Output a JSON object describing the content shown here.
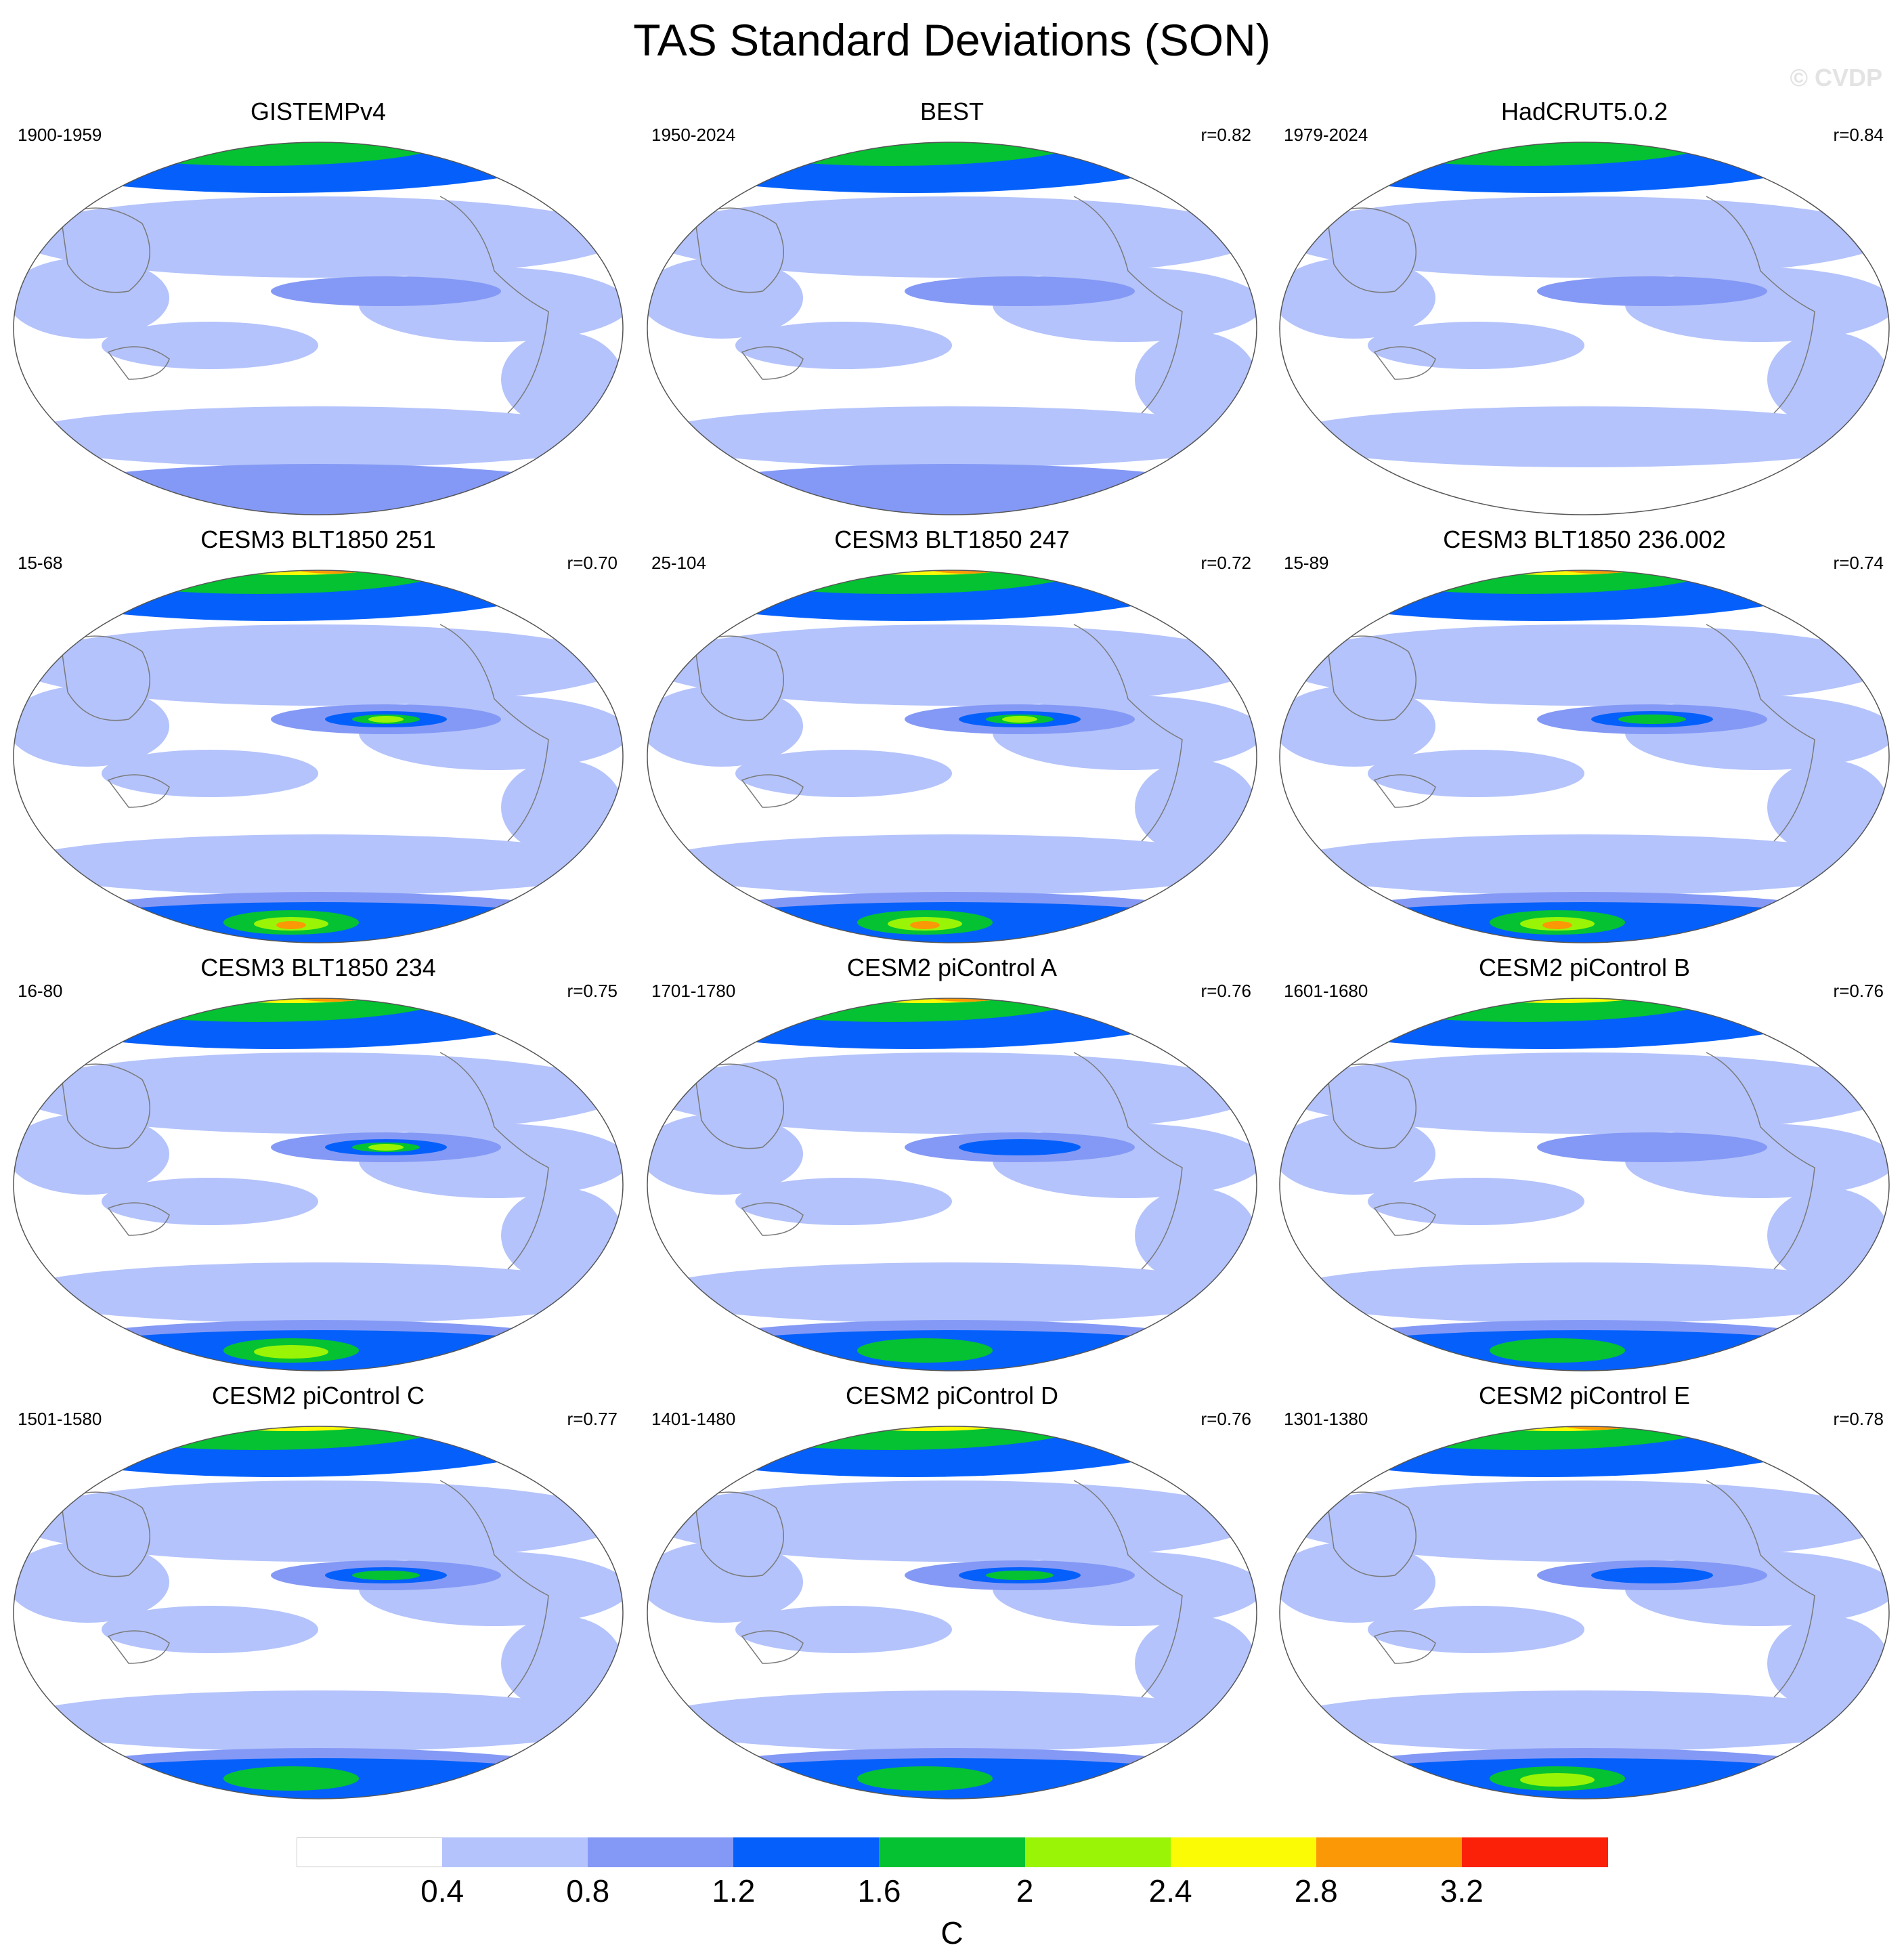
{
  "title": "TAS Standard Deviations (SON)",
  "watermark": "© CVDP",
  "colorbar": {
    "unit": "C",
    "levels": [
      "0.4",
      "0.8",
      "1.2",
      "1.6",
      "2",
      "2.4",
      "2.8",
      "3.2"
    ],
    "colors": [
      "#ffffff",
      "#b4c3fb",
      "#8499f5",
      "#0560fb",
      "#05c232",
      "#99f505",
      "#fbfb05",
      "#fb9805",
      "#fb2108"
    ]
  },
  "panels": [
    {
      "title": "GISTEMPv4",
      "period": "1900-1959",
      "r": "",
      "arctic": 4,
      "antarctic": 1,
      "enso": 2,
      "antarcticBlue": true
    },
    {
      "title": "BEST",
      "period": "1950-2024",
      "r": "r=0.82",
      "arctic": 5,
      "antarctic": 1,
      "enso": 2,
      "antarcticBlue": true
    },
    {
      "title": "HadCRUT5.0.2",
      "period": "1979-2024",
      "r": "r=0.84",
      "arctic": 4,
      "antarctic": 1,
      "enso": 2,
      "antarcticBlue": false
    },
    {
      "title": "CESM3 BLT1850 251",
      "period": "15-68",
      "r": "r=0.70",
      "arctic": 8,
      "antarctic": 8,
      "enso": 5,
      "antarcticBlue": true
    },
    {
      "title": "CESM3 BLT1850 247",
      "period": "25-104",
      "r": "r=0.72",
      "arctic": 7,
      "antarctic": 8,
      "enso": 5,
      "antarcticBlue": true
    },
    {
      "title": "CESM3 BLT1850 236.002",
      "period": "15-89",
      "r": "r=0.74",
      "arctic": 7,
      "antarctic": 8,
      "enso": 4,
      "antarcticBlue": true
    },
    {
      "title": "CESM3 BLT1850 234",
      "period": "16-80",
      "r": "r=0.75",
      "arctic": 7,
      "antarctic": 7,
      "enso": 5,
      "antarcticBlue": true
    },
    {
      "title": "CESM2 piControl A",
      "period": "1701-1780",
      "r": "r=0.76",
      "arctic": 7,
      "antarctic": 5,
      "enso": 3,
      "antarcticBlue": true
    },
    {
      "title": "CESM2 piControl B",
      "period": "1601-1680",
      "r": "r=0.76",
      "arctic": 6,
      "antarctic": 5,
      "enso": 2,
      "antarcticBlue": true
    },
    {
      "title": "CESM2 piControl C",
      "period": "1501-1580",
      "r": "r=0.77",
      "arctic": 6,
      "antarctic": 5,
      "enso": 4,
      "antarcticBlue": true
    },
    {
      "title": "CESM2 piControl D",
      "period": "1401-1480",
      "r": "r=0.76",
      "arctic": 6,
      "antarctic": 5,
      "enso": 4,
      "antarcticBlue": true
    },
    {
      "title": "CESM2 piControl E",
      "period": "1301-1380",
      "r": "r=0.78",
      "arctic": 7,
      "antarctic": 7,
      "enso": 3,
      "antarcticBlue": true
    }
  ]
}
